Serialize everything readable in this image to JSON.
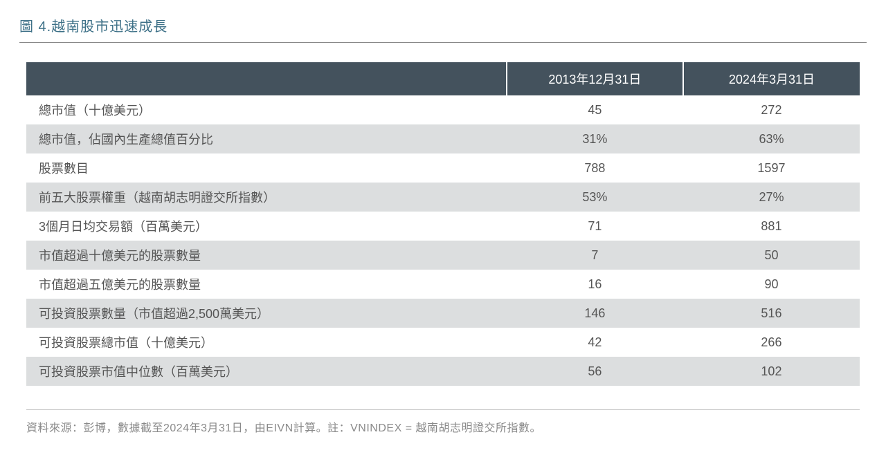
{
  "title": "圖 4.越南股市迅速成長",
  "colors": {
    "title_color": "#3d7087",
    "header_bg": "#44525d",
    "header_text": "#ffffff",
    "row_odd_bg": "#ffffff",
    "row_even_bg": "#dcdedf",
    "text_color": "#555555",
    "footnote_color": "#8a8a8a",
    "rule_color": "#888888"
  },
  "table": {
    "header": {
      "blank": "",
      "col1": "2013年12月31日",
      "col2": "2024年3月31日"
    },
    "rows": [
      {
        "label": "總市值（十億美元）",
        "v1": "45",
        "v2": "272"
      },
      {
        "label": "總市值，佔國內生產總值百分比",
        "v1": "31%",
        "v2": "63%"
      },
      {
        "label": "股票數目",
        "v1": "788",
        "v2": "1597"
      },
      {
        "label": "前五大股票權重（越南胡志明證交所指數）",
        "v1": "53%",
        "v2": "27%"
      },
      {
        "label": "3個月日均交易額（百萬美元）",
        "v1": "71",
        "v2": "881"
      },
      {
        "label": "市值超過十億美元的股票數量",
        "v1": "7",
        "v2": "50"
      },
      {
        "label": "市值超過五億美元的股票數量",
        "v1": "16",
        "v2": "90"
      },
      {
        "label": "可投資股票數量（市值超過2,500萬美元）",
        "v1": "146",
        "v2": "516"
      },
      {
        "label": "可投資股票總市值（十億美元）",
        "v1": "42",
        "v2": "266"
      },
      {
        "label": "可投資股票市值中位數（百萬美元）",
        "v1": "56",
        "v2": "102"
      }
    ]
  },
  "footnote": "資料來源：彭博，數據截至2024年3月31日，由EIVN計算。註：VNINDEX = 越南胡志明證交所指數。"
}
